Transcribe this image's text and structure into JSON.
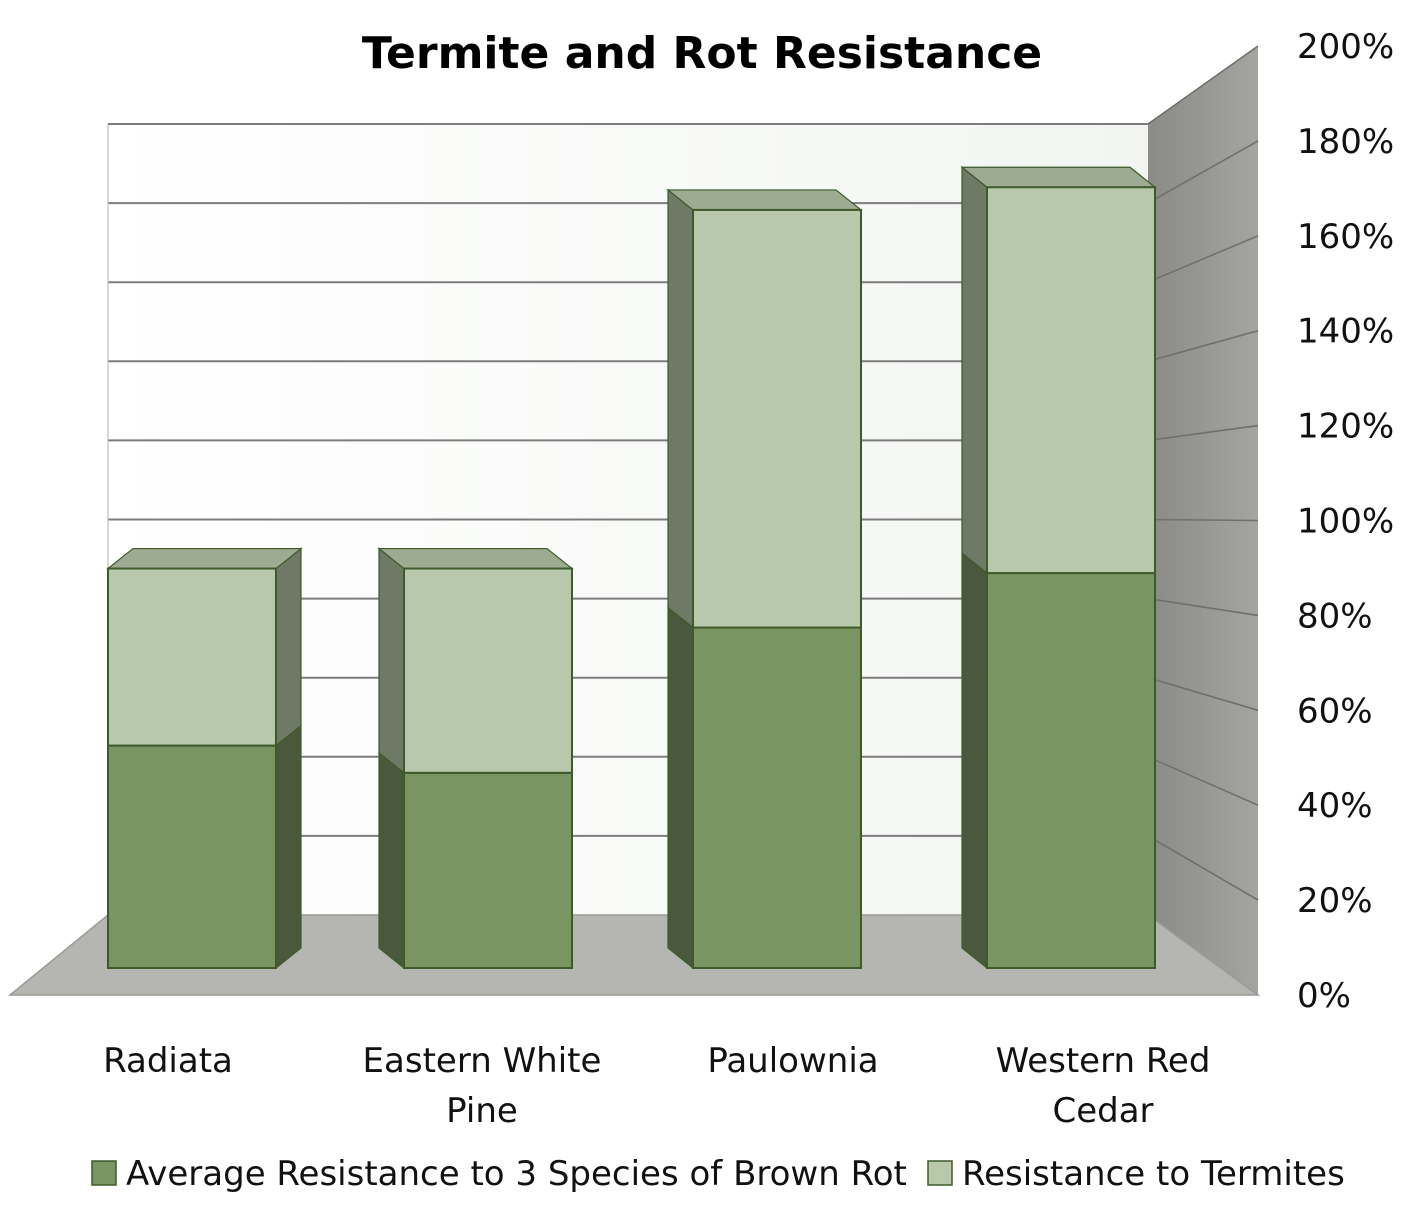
{
  "chart_data": {
    "type": "bar",
    "stacked": true,
    "three_d": true,
    "title": "Termite and Rot Resistance",
    "xlabel": "",
    "ylabel": "",
    "categories": [
      [
        "Radiata"
      ],
      [
        "Eastern White",
        "Pine"
      ],
      [
        "Paulownia"
      ],
      [
        "Western Red",
        "Cedar"
      ]
    ],
    "series": [
      {
        "name": "Average Resistance to 3 Species of Brown Rot",
        "values": [
          49,
          43,
          75,
          87
        ],
        "color": "#7b9562"
      },
      {
        "name": "Resistance to Termites",
        "values": [
          39,
          45,
          92,
          85
        ],
        "color": "#b7c9aa"
      }
    ],
    "ylim": [
      0,
      200
    ],
    "yticks": [
      "0%",
      "20%",
      "40%",
      "60%",
      "80%",
      "100%",
      "120%",
      "140%",
      "160%",
      "180%",
      "200%"
    ],
    "y_axis_side": "right",
    "grid": true,
    "legend": "bottom"
  }
}
